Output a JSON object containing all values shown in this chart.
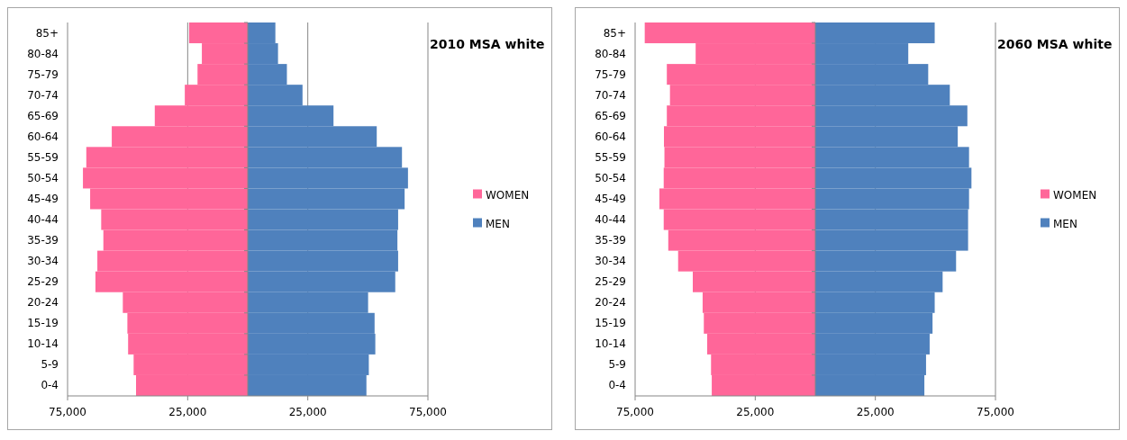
{
  "chart_data": [
    {
      "type": "bar",
      "title": "2010 MSA white",
      "orientation": "horizontal",
      "stacked": true,
      "categories": [
        "85+",
        "80-84",
        "75-79",
        "70-74",
        "65-69",
        "60-64",
        "55-59",
        "50-54",
        "45-49",
        "40-44",
        "35-39",
        "30-34",
        "25-29",
        "20-24",
        "15-19",
        "10-14",
        "5-9",
        "0-4"
      ],
      "series": [
        {
          "name": "WOMEN",
          "color": "#ff6699",
          "values": [
            -24400,
            -19100,
            -20900,
            -26200,
            -38700,
            -56600,
            -67200,
            -68600,
            -65600,
            -61000,
            -60100,
            -62600,
            -63400,
            -52000,
            -50100,
            -49800,
            -47500,
            -46500
          ]
        },
        {
          "name": "MEN",
          "color": "#4f81bd",
          "values": [
            11500,
            12600,
            16300,
            22800,
            35700,
            53700,
            64200,
            66700,
            65300,
            62600,
            62300,
            62600,
            61400,
            50100,
            52800,
            53100,
            50400,
            49400
          ]
        }
      ],
      "xlim": [
        -75000,
        75000
      ],
      "xticks": [
        {
          "value": -75000,
          "label": "75,000"
        },
        {
          "value": -25000,
          "label": "25,000"
        },
        {
          "value": 25000,
          "label": "25,000"
        },
        {
          "value": 75000,
          "label": "75,000"
        }
      ],
      "grid": "x",
      "legend": "right"
    },
    {
      "type": "bar",
      "title": "2060 MSA white",
      "orientation": "horizontal",
      "stacked": true,
      "categories": [
        "85+",
        "80-84",
        "75-79",
        "70-74",
        "65-69",
        "60-64",
        "55-59",
        "50-54",
        "45-49",
        "40-44",
        "35-39",
        "30-34",
        "25-29",
        "20-24",
        "15-19",
        "10-14",
        "5-9",
        "0-4"
      ],
      "series": [
        {
          "name": "WOMEN",
          "color": "#ff6699",
          "values": [
            -71000,
            -49800,
            -61800,
            -60500,
            -61800,
            -63000,
            -62800,
            -63100,
            -64900,
            -63100,
            -61200,
            -57100,
            -51000,
            -46900,
            -46400,
            -45000,
            -43400,
            -43100
          ]
        },
        {
          "name": "MEN",
          "color": "#4f81bd",
          "values": [
            49700,
            38700,
            47000,
            56000,
            63300,
            59300,
            64000,
            65000,
            64000,
            63600,
            63600,
            58600,
            53000,
            49700,
            48800,
            47600,
            46100,
            45400
          ]
        }
      ],
      "xlim": [
        -75000,
        75000
      ],
      "xticks": [
        {
          "value": -75000,
          "label": "75,000"
        },
        {
          "value": -25000,
          "label": "25,000"
        },
        {
          "value": 25000,
          "label": "25,000"
        },
        {
          "value": 75000,
          "label": "75,000"
        }
      ],
      "grid": "x",
      "legend": "right"
    }
  ]
}
